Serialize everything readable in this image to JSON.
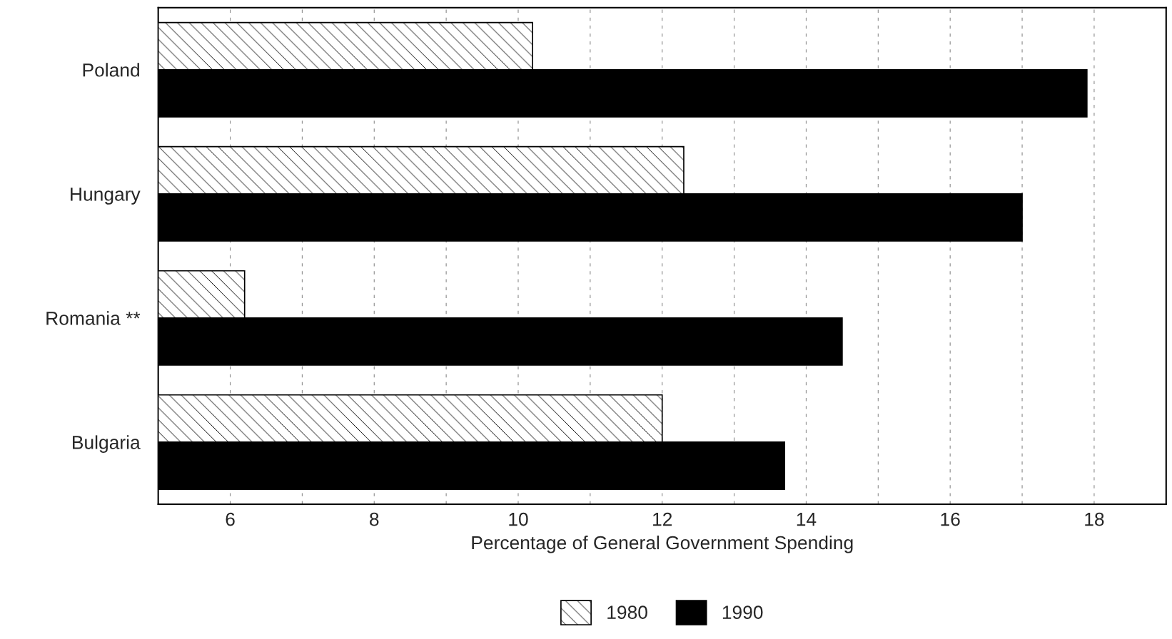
{
  "chart_data": {
    "type": "bar",
    "orientation": "horizontal",
    "xlabel": "Percentage of General Government Spending",
    "categories": [
      "Poland",
      "Hungary",
      "Romania **",
      "Bulgaria"
    ],
    "series": [
      {
        "name": "1980",
        "color": "#ffffff",
        "values": [
          10.2,
          12.3,
          6.2,
          12.0
        ]
      },
      {
        "name": "1990",
        "color": "#000000",
        "values": [
          17.9,
          17.0,
          14.5,
          13.7
        ]
      }
    ],
    "xlim": [
      5,
      19
    ],
    "xticks": [
      6,
      {
        "value": 7,
        "label": null
      },
      8,
      {
        "value": 9,
        "label": null
      },
      10,
      {
        "value": 11,
        "label": null
      },
      12,
      {
        "value": 13,
        "label": null
      },
      14,
      {
        "value": 15,
        "label": null
      },
      16,
      {
        "value": 17,
        "label": null
      },
      18
    ],
    "grid": "x",
    "legend": "bottom"
  }
}
